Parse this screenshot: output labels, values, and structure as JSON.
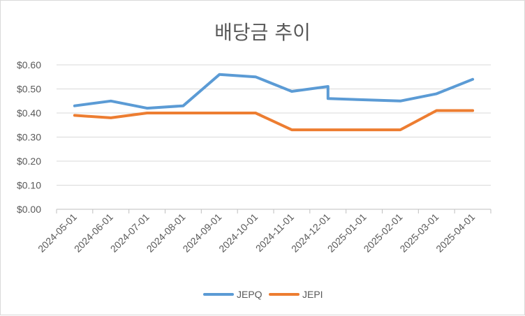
{
  "chart_data": {
    "type": "line",
    "title": "배당금 추이",
    "xlabel": "",
    "ylabel": "",
    "ylim": [
      0,
      0.6
    ],
    "y_ticks": [
      0.0,
      0.1,
      0.2,
      0.3,
      0.4,
      0.5,
      0.6
    ],
    "y_tick_labels": [
      "$0.00",
      "$0.10",
      "$0.20",
      "$0.30",
      "$0.40",
      "$0.50",
      "$0.60"
    ],
    "x_tick_labels": [
      "2024-05-01",
      "2024-06-01",
      "2024-07-01",
      "2024-08-01",
      "2024-09-01",
      "2024-10-01",
      "2024-11-01",
      "2024-12-01",
      "2025-01-01",
      "2025-02-01",
      "2025-03-01",
      "2025-04-01"
    ],
    "grid": true,
    "legend_position": "bottom",
    "series": [
      {
        "name": "JEPQ",
        "color": "#5b9bd5",
        "x": [
          "2024-05-01",
          "2024-06-01",
          "2024-07-01",
          "2024-08-01",
          "2024-09-01",
          "2024-10-01",
          "2024-11-01",
          "2024-12-01",
          "2024-12-01",
          "2025-02-01",
          "2025-03-01",
          "2025-04-01"
        ],
        "values": [
          0.43,
          0.45,
          0.42,
          0.43,
          0.56,
          0.55,
          0.49,
          0.51,
          0.46,
          0.45,
          0.48,
          0.54
        ]
      },
      {
        "name": "JEPI",
        "color": "#ed7d31",
        "x": [
          "2024-05-01",
          "2024-06-01",
          "2024-07-01",
          "2024-08-01",
          "2024-09-01",
          "2024-10-01",
          "2024-11-01",
          "2024-12-01",
          "2024-12-01",
          "2025-02-01",
          "2025-03-01",
          "2025-04-01"
        ],
        "values": [
          0.39,
          0.38,
          0.4,
          0.4,
          0.4,
          0.4,
          0.33,
          0.33,
          0.33,
          0.33,
          0.41,
          0.41
        ]
      }
    ]
  }
}
